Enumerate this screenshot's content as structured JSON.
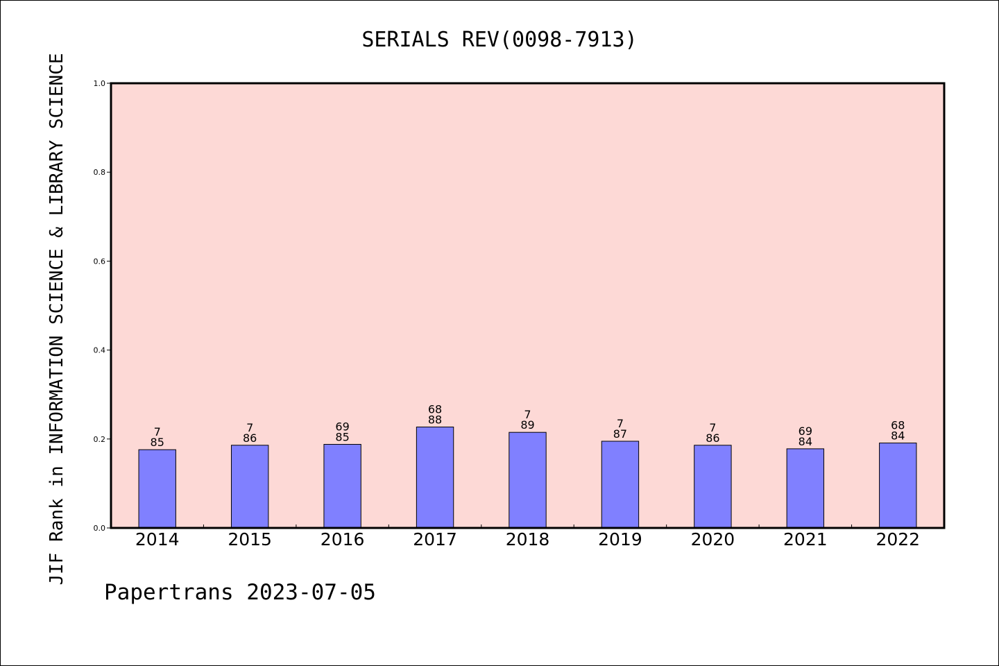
{
  "chart_data": {
    "type": "bar",
    "title": "SERIALS REV(0098-7913)",
    "xlabel": "",
    "ylabel": "JIF Rank in INFORMATION SCIENCE & LIBRARY SCIENCE",
    "ylim": [
      0,
      1.0
    ],
    "yticks": [
      "0.0",
      "0.2",
      "0.4",
      "0.6",
      "0.8",
      "1.0"
    ],
    "categories": [
      "2014",
      "2015",
      "2016",
      "2017",
      "2018",
      "2019",
      "2020",
      "2021",
      "2022"
    ],
    "values": [
      0.176,
      0.186,
      0.188,
      0.227,
      0.215,
      0.195,
      0.186,
      0.178,
      0.191
    ],
    "labels_top": [
      "7",
      "7",
      "69",
      "68",
      "7",
      "7",
      "7",
      "69",
      "68"
    ],
    "labels_bottom": [
      "85",
      "86",
      "85",
      "88",
      "89",
      "87",
      "86",
      "84",
      "84"
    ],
    "grid": false,
    "colors": {
      "plot_bg": "#fdd9d6",
      "bar": "#8080ff",
      "bar_edge": "#000000"
    }
  },
  "footer": "Papertrans 2023-07-05"
}
